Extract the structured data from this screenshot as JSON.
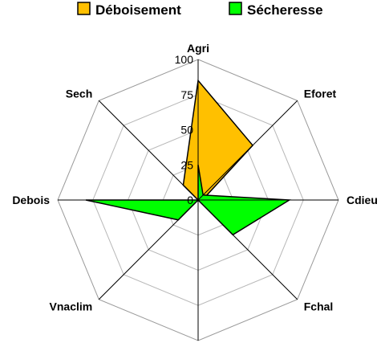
{
  "chart_data": {
    "type": "radar",
    "axes": [
      "Agri",
      "Eforet",
      "Cdieu",
      "Fchal",
      "Sech",
      "Vnaclim",
      "Debois"
    ],
    "axis_order_clockwise": [
      "Agri",
      "Eforet",
      "Cdieu",
      "Fchal",
      "",
      "Vnaclim",
      "Debois",
      "Sech"
    ],
    "rlim": [
      0,
      100
    ],
    "ticks": [
      "0",
      "25",
      "50",
      "75",
      "100"
    ],
    "grid": true,
    "legend_position": "top",
    "series": [
      {
        "name": "Déboisement",
        "color": "#ffc000",
        "values": [
          85,
          55,
          3,
          0,
          0,
          0,
          0,
          15
        ]
      },
      {
        "name": "Sécheresse",
        "color": "#00ff00",
        "values": [
          25,
          5,
          65,
          35,
          0,
          20,
          80,
          0
        ]
      }
    ]
  }
}
